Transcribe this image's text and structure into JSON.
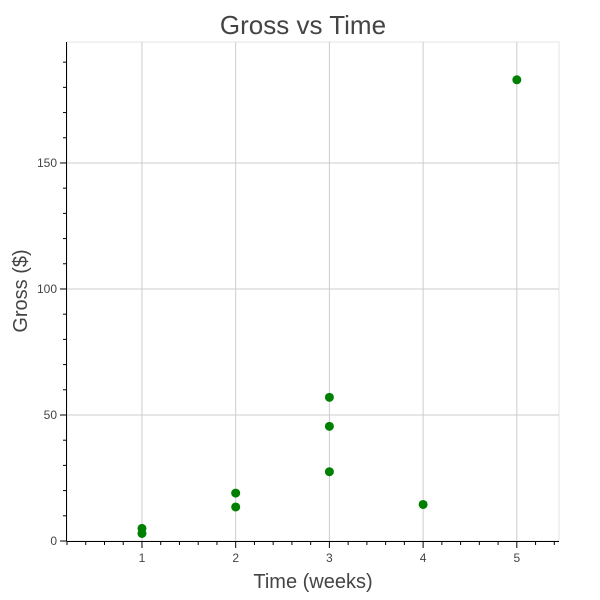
{
  "chart_data": {
    "type": "scatter",
    "title": "Gross vs Time",
    "xlabel": "Time (weeks)",
    "ylabel": "Gross ($)",
    "xlim": [
      0.2,
      5.45
    ],
    "ylim": [
      0,
      198
    ],
    "x_ticks": [
      1,
      2,
      3,
      4,
      5
    ],
    "x_tick_labels": [
      "1",
      "2",
      "3",
      "4",
      "5"
    ],
    "y_ticks": [
      0,
      50,
      100,
      150
    ],
    "y_tick_labels": [
      "0",
      "50",
      "100",
      "150"
    ],
    "grid": true,
    "marker_color": "#008000",
    "points": [
      {
        "x": 1,
        "y": 5
      },
      {
        "x": 1,
        "y": 3
      },
      {
        "x": 2,
        "y": 19
      },
      {
        "x": 2,
        "y": 13.5
      },
      {
        "x": 3,
        "y": 57
      },
      {
        "x": 3,
        "y": 45.5
      },
      {
        "x": 3,
        "y": 27.5
      },
      {
        "x": 4,
        "y": 14.5
      },
      {
        "x": 5,
        "y": 183
      }
    ]
  }
}
